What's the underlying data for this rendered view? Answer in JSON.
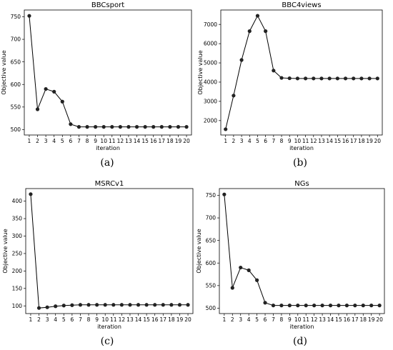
{
  "chart_data": [
    {
      "type": "line",
      "title": "BBCsport",
      "xlabel": "iteration",
      "ylabel": "Objective value",
      "caption": "(a)",
      "x": [
        1,
        2,
        3,
        4,
        5,
        6,
        7,
        8,
        9,
        10,
        11,
        12,
        13,
        14,
        15,
        16,
        17,
        18,
        19,
        20
      ],
      "values": [
        752,
        545,
        590,
        584,
        562,
        512,
        506,
        506,
        506,
        506,
        506,
        506,
        506,
        506,
        506,
        506,
        506,
        506,
        506,
        506
      ],
      "xlim": [
        0.4,
        20.6
      ],
      "ylim": [
        488,
        765
      ],
      "yticks": [
        500,
        550,
        600,
        650,
        700,
        750
      ],
      "grid": false,
      "color": "#000000"
    },
    {
      "type": "line",
      "title": "BBC4views",
      "xlabel": "iteration",
      "ylabel": "Objective value",
      "caption": "(b)",
      "x": [
        1,
        2,
        3,
        4,
        5,
        6,
        7,
        8,
        9,
        10,
        11,
        12,
        13,
        14,
        15,
        16,
        17,
        18,
        19,
        20
      ],
      "values": [
        1550,
        3300,
        5150,
        6650,
        7450,
        6650,
        4600,
        4220,
        4200,
        4190,
        4190,
        4190,
        4190,
        4190,
        4190,
        4190,
        4190,
        4190,
        4190,
        4190
      ],
      "xlim": [
        0.4,
        20.6
      ],
      "ylim": [
        1250,
        7750
      ],
      "yticks": [
        2000,
        3000,
        4000,
        5000,
        6000,
        7000
      ],
      "grid": false,
      "color": "#000000"
    },
    {
      "type": "line",
      "title": "MSRCv1",
      "xlabel": "iteration",
      "ylabel": "Objective value",
      "caption": "(c)",
      "x": [
        1,
        2,
        3,
        4,
        5,
        6,
        7,
        8,
        9,
        10,
        11,
        12,
        13,
        14,
        15,
        16,
        17,
        18,
        19,
        20
      ],
      "values": [
        420,
        94,
        96,
        99,
        101,
        102,
        103,
        103,
        103,
        103,
        103,
        103,
        103,
        103,
        103,
        103,
        103,
        103,
        103,
        103
      ],
      "xlim": [
        0.4,
        20.6
      ],
      "ylim": [
        78,
        436
      ],
      "yticks": [
        100,
        150,
        200,
        250,
        300,
        350,
        400
      ],
      "grid": false,
      "color": "#000000"
    },
    {
      "type": "line",
      "title": "NGs",
      "xlabel": "iteration",
      "ylabel": "Objective value",
      "caption": "(d)",
      "x": [
        1,
        2,
        3,
        4,
        5,
        6,
        7,
        8,
        9,
        10,
        11,
        12,
        13,
        14,
        15,
        16,
        17,
        18,
        19,
        20
      ],
      "values": [
        752,
        545,
        590,
        584,
        562,
        512,
        506,
        506,
        506,
        506,
        506,
        506,
        506,
        506,
        506,
        506,
        506,
        506,
        506,
        506
      ],
      "xlim": [
        0.4,
        20.6
      ],
      "ylim": [
        488,
        765
      ],
      "yticks": [
        500,
        550,
        600,
        650,
        700,
        750
      ],
      "grid": false,
      "color": "#000000"
    }
  ]
}
